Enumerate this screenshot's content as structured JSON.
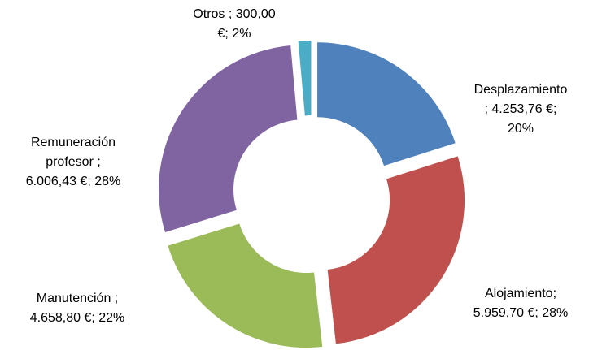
{
  "chart_data": {
    "type": "donut",
    "values": [
      4253.76,
      5959.7,
      4658.8,
      6006.43,
      300.0
    ],
    "value_labels": [
      [
        "Desplazamiento",
        "; 4.253,76 €;",
        "20%"
      ],
      [
        "Alojamiento;",
        "5.959,70 €; 28%"
      ],
      [
        "Manutención ;",
        "4.658,80 €; 22%"
      ],
      [
        "Remuneración",
        "profesor ;",
        "6.006,43 €; 28%"
      ],
      [
        "Otros ; 300,00",
        "€; 2%"
      ]
    ],
    "colors": [
      "#4f81bd",
      "#c0504d",
      "#9bbb59",
      "#8064a2",
      "#4bacc6"
    ]
  }
}
